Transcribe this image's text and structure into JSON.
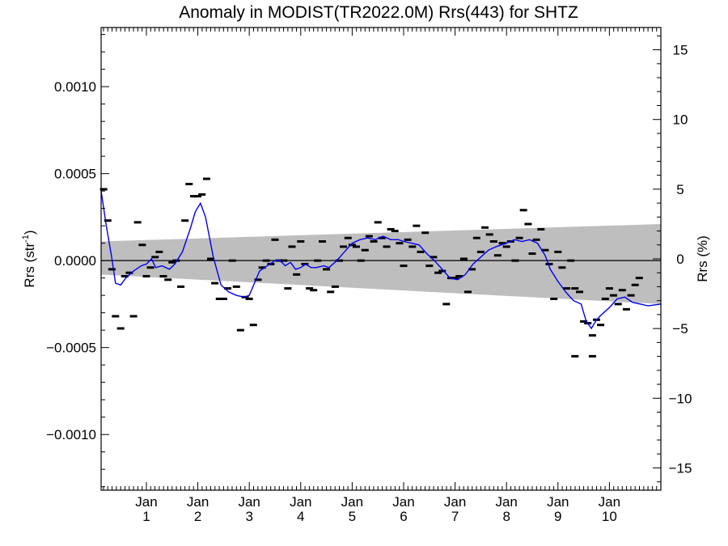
{
  "chart_data": {
    "type": "scatter",
    "title": "Anomaly in MODIST(TR2022.0M) Rrs(443) for SHTZ",
    "ylabel_left": {
      "main": "Rrs (str",
      "sup": "-1",
      "close": ")"
    },
    "ylabel_right": "Rrs (%)",
    "xlim": [
      0.12,
      11.0
    ],
    "ylim_left": [
      -0.00132,
      0.00134
    ],
    "ylim_right": [
      -16.6,
      16.6
    ],
    "grid": false,
    "x_ticks": [
      {
        "x": 1,
        "month": "Jan",
        "label": "1"
      },
      {
        "x": 2,
        "month": "Jan",
        "label": "2"
      },
      {
        "x": 3,
        "month": "Jan",
        "label": "3"
      },
      {
        "x": 4,
        "month": "Jan",
        "label": "4"
      },
      {
        "x": 5,
        "month": "Jan",
        "label": "5"
      },
      {
        "x": 6,
        "month": "Jan",
        "label": "6"
      },
      {
        "x": 7,
        "month": "Jan",
        "label": "7"
      },
      {
        "x": 8,
        "month": "Jan",
        "label": "8"
      },
      {
        "x": 9,
        "month": "Jan",
        "label": "9"
      },
      {
        "x": 10,
        "month": "Jan",
        "label": "10"
      }
    ],
    "y_ticks_left": [
      {
        "v": 0.001,
        "label": "0.0010"
      },
      {
        "v": 0.0005,
        "label": "0.0005"
      },
      {
        "v": 0.0,
        "label": "0.0000"
      },
      {
        "v": -0.0005,
        "label": "−0.0005"
      },
      {
        "v": -0.001,
        "label": "−0.0010"
      }
    ],
    "y_ticks_right": [
      {
        "v": 15,
        "label": "15"
      },
      {
        "v": 10,
        "label": "10"
      },
      {
        "v": 5,
        "label": "5"
      },
      {
        "v": 0,
        "label": "0"
      },
      {
        "v": -5,
        "label": "−5"
      },
      {
        "v": -10,
        "label": "−10"
      },
      {
        "v": -15,
        "label": "−15"
      }
    ],
    "uncertainty_band": {
      "x": [
        0.12,
        11.0
      ],
      "upper": [
        0.00011,
        0.00021
      ],
      "lower": [
        -8e-05,
        -0.00025
      ]
    },
    "zero_line": 0,
    "points": [
      [
        0.17,
        0.00041
      ],
      [
        0.25,
        0.00023
      ],
      [
        0.33,
        -5e-05
      ],
      [
        0.4,
        -0.00032
      ],
      [
        0.5,
        -0.00039
      ],
      [
        0.58,
        -9e-05
      ],
      [
        0.67,
        -7e-05
      ],
      [
        0.75,
        -0.00032
      ],
      [
        0.83,
        0.00022
      ],
      [
        0.92,
        9e-05
      ],
      [
        1.0,
        -9e-05
      ],
      [
        1.08,
        -4e-05
      ],
      [
        1.17,
        2e-05
      ],
      [
        1.25,
        5e-05
      ],
      [
        1.33,
        -9e-05
      ],
      [
        1.42,
        -0.00011
      ],
      [
        1.5,
        -1e-05
      ],
      [
        1.58,
        0.0
      ],
      [
        1.67,
        -0.00015
      ],
      [
        1.75,
        0.00023
      ],
      [
        1.83,
        0.00044
      ],
      [
        1.92,
        0.00037
      ],
      [
        2.0,
        0.00037
      ],
      [
        2.08,
        0.00038
      ],
      [
        2.17,
        0.00047
      ],
      [
        2.25,
        1e-05
      ],
      [
        2.33,
        -0.00013
      ],
      [
        2.42,
        -0.00022
      ],
      [
        2.5,
        -0.00022
      ],
      [
        2.58,
        -0.00016
      ],
      [
        2.67,
        0.0
      ],
      [
        2.75,
        -0.00015
      ],
      [
        2.83,
        -0.0004
      ],
      [
        2.92,
        -0.00021
      ],
      [
        3.0,
        -0.00022
      ],
      [
        3.08,
        -0.00037
      ],
      [
        3.17,
        -0.00011
      ],
      [
        3.25,
        -4e-05
      ],
      [
        3.33,
        0.0
      ],
      [
        3.42,
        -2e-05
      ],
      [
        3.5,
        0.00012
      ],
      [
        3.58,
        0.0
      ],
      [
        3.67,
        0.0
      ],
      [
        3.75,
        -0.00016
      ],
      [
        3.83,
        8e-05
      ],
      [
        3.92,
        -8e-05
      ],
      [
        4.0,
        0.00011
      ],
      [
        4.08,
        -2e-05
      ],
      [
        4.17,
        -0.00016
      ],
      [
        4.25,
        -0.00017
      ],
      [
        4.33,
        0.0
      ],
      [
        4.42,
        0.00011
      ],
      [
        4.5,
        -5e-05
      ],
      [
        4.58,
        -0.00018
      ],
      [
        4.67,
        -0.00015
      ],
      [
        4.75,
        0.0
      ],
      [
        4.83,
        8e-05
      ],
      [
        4.92,
        0.00013
      ],
      [
        5.0,
        9e-05
      ],
      [
        5.08,
        8e-05
      ],
      [
        5.17,
        0.0
      ],
      [
        5.25,
        6e-05
      ],
      [
        5.33,
        0.00014
      ],
      [
        5.42,
        0.00011
      ],
      [
        5.5,
        0.00022
      ],
      [
        5.58,
        0.00013
      ],
      [
        5.67,
        8e-05
      ],
      [
        5.75,
        0.00018
      ],
      [
        5.83,
        0.00017
      ],
      [
        5.92,
        0.0001
      ],
      [
        6.0,
        -3e-05
      ],
      [
        6.08,
        0.00012
      ],
      [
        6.17,
        8e-05
      ],
      [
        6.25,
        0.0002
      ],
      [
        6.33,
        5e-05
      ],
      [
        6.42,
        0.00016
      ],
      [
        6.5,
        -3e-05
      ],
      [
        6.58,
        2e-05
      ],
      [
        6.67,
        -7e-05
      ],
      [
        6.75,
        -6e-05
      ],
      [
        6.83,
        -0.00025
      ],
      [
        6.92,
        -0.0001
      ],
      [
        7.0,
        -0.0001
      ],
      [
        7.08,
        -9e-05
      ],
      [
        7.17,
        1e-05
      ],
      [
        7.25,
        -0.00018
      ],
      [
        7.33,
        -5e-05
      ],
      [
        7.42,
        0.00013
      ],
      [
        7.5,
        5e-05
      ],
      [
        7.58,
        0.00019
      ],
      [
        7.67,
        0.00015
      ],
      [
        7.75,
        0.00011
      ],
      [
        7.83,
        3e-05
      ],
      [
        7.92,
        0.0001
      ],
      [
        8.0,
        8e-05
      ],
      [
        8.08,
        0.00011
      ],
      [
        8.17,
        0.0
      ],
      [
        8.25,
        0.00013
      ],
      [
        8.33,
        0.00029
      ],
      [
        8.42,
        0.00021
      ],
      [
        8.5,
        4e-05
      ],
      [
        8.58,
        0.00012
      ],
      [
        8.67,
        0.00018
      ],
      [
        8.75,
        6e-05
      ],
      [
        8.83,
        -2e-05
      ],
      [
        8.92,
        -0.00022
      ],
      [
        9.0,
        5e-05
      ],
      [
        9.08,
        -4e-05
      ],
      [
        9.17,
        -0.00016
      ],
      [
        9.25,
        0.0
      ],
      [
        9.33,
        -0.00016
      ],
      [
        9.42,
        -0.00018
      ],
      [
        9.5,
        -0.00035
      ],
      [
        9.58,
        -0.00036
      ],
      [
        9.67,
        -0.00043
      ],
      [
        9.75,
        -0.00034
      ],
      [
        9.83,
        -0.00037
      ],
      [
        9.92,
        -0.00022
      ],
      [
        10.0,
        -0.00016
      ],
      [
        10.08,
        -0.0002
      ],
      [
        10.17,
        -0.00025
      ],
      [
        10.25,
        -0.00017
      ],
      [
        10.33,
        -0.00028
      ],
      [
        10.42,
        -0.0002
      ],
      [
        10.5,
        -0.00014
      ],
      [
        10.58,
        -0.0001
      ],
      [
        9.33,
        -0.00055
      ],
      [
        9.67,
        -0.00055
      ]
    ],
    "smooth_line": [
      [
        0.12,
        0.0004
      ],
      [
        0.22,
        0.0002
      ],
      [
        0.32,
        3e-05
      ],
      [
        0.4,
        -0.00013
      ],
      [
        0.5,
        -0.00014
      ],
      [
        0.6,
        -0.0001
      ],
      [
        0.75,
        -6e-05
      ],
      [
        0.9,
        -3e-05
      ],
      [
        1.0,
        -2e-05
      ],
      [
        1.1,
        1e-05
      ],
      [
        1.18,
        -4e-05
      ],
      [
        1.3,
        -3e-05
      ],
      [
        1.45,
        -5e-05
      ],
      [
        1.55,
        -2e-05
      ],
      [
        1.7,
        5e-05
      ],
      [
        1.85,
        0.00018
      ],
      [
        1.95,
        0.00028
      ],
      [
        2.05,
        0.00033
      ],
      [
        2.15,
        0.00025
      ],
      [
        2.3,
        2e-05
      ],
      [
        2.45,
        -0.00014
      ],
      [
        2.6,
        -0.00018
      ],
      [
        2.75,
        -0.0002
      ],
      [
        2.9,
        -0.00021
      ],
      [
        3.0,
        -0.0002
      ],
      [
        3.1,
        -0.00013
      ],
      [
        3.2,
        -6e-05
      ],
      [
        3.35,
        -3e-05
      ],
      [
        3.5,
        0.0
      ],
      [
        3.6,
        0.0
      ],
      [
        3.7,
        -3e-05
      ],
      [
        3.8,
        -1e-05
      ],
      [
        3.9,
        -5e-05
      ],
      [
        4.0,
        -4e-05
      ],
      [
        4.1,
        -2e-05
      ],
      [
        4.2,
        -4e-05
      ],
      [
        4.3,
        -4e-05
      ],
      [
        4.45,
        -3e-05
      ],
      [
        4.55,
        -4e-05
      ],
      [
        4.7,
        0.0
      ],
      [
        4.85,
        5e-05
      ],
      [
        5.0,
        0.0001
      ],
      [
        5.15,
        0.00012
      ],
      [
        5.3,
        0.00013
      ],
      [
        5.45,
        0.00012
      ],
      [
        5.6,
        0.00014
      ],
      [
        5.75,
        0.00012
      ],
      [
        5.9,
        0.00012
      ],
      [
        6.0,
        0.00011
      ],
      [
        6.15,
        0.0001
      ],
      [
        6.3,
        9e-05
      ],
      [
        6.45,
        4e-05
      ],
      [
        6.6,
        0.0
      ],
      [
        6.75,
        -5e-05
      ],
      [
        6.9,
        -0.0001
      ],
      [
        7.05,
        -0.00011
      ],
      [
        7.2,
        -8e-05
      ],
      [
        7.35,
        -2e-05
      ],
      [
        7.5,
        2e-05
      ],
      [
        7.65,
        6e-05
      ],
      [
        7.8,
        8e-05
      ],
      [
        8.0,
        0.0001
      ],
      [
        8.15,
        0.00012
      ],
      [
        8.3,
        0.00011
      ],
      [
        8.45,
        0.00012
      ],
      [
        8.6,
        0.0001
      ],
      [
        8.75,
        3e-05
      ],
      [
        8.85,
        -5e-05
      ],
      [
        9.0,
        -0.00012
      ],
      [
        9.15,
        -0.00018
      ],
      [
        9.3,
        -0.00023
      ],
      [
        9.45,
        -0.00025
      ],
      [
        9.55,
        -0.00035
      ],
      [
        9.65,
        -0.00039
      ],
      [
        9.75,
        -0.00034
      ],
      [
        9.85,
        -0.00031
      ],
      [
        10.0,
        -0.00027
      ],
      [
        10.15,
        -0.00022
      ],
      [
        10.3,
        -0.00021
      ],
      [
        10.45,
        -0.00024
      ],
      [
        10.6,
        -0.00025
      ],
      [
        10.75,
        -0.00026
      ],
      [
        11.0,
        -0.00025
      ]
    ],
    "colors": {
      "band": "#bebebe",
      "line": "#0000ee",
      "points": "#000000",
      "zero_line": "#000000"
    }
  }
}
